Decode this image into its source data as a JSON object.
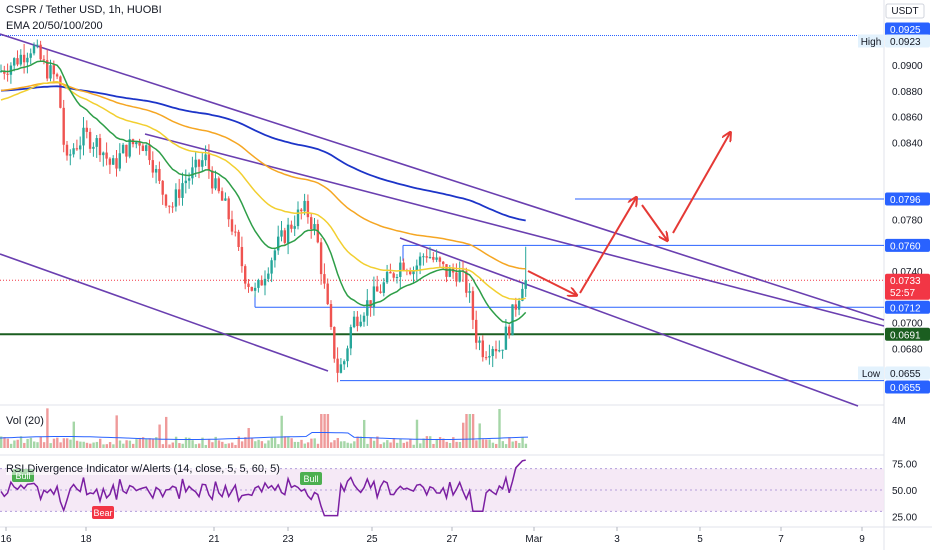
{
  "header": {
    "title": "CSPR / Tether USD, 1h, HUOBI",
    "indicator": "EMA 20/50/100/200"
  },
  "currency_label": "USDT",
  "volume_pane": {
    "label": "Vol (20)",
    "scale_label": "4M"
  },
  "rsi_pane": {
    "label": "RSI Divergence Indicator w/Alerts (14, close, 5, 5, 60, 5)",
    "ticks": [
      "75.00",
      "50.00",
      "25.00"
    ],
    "tags": [
      {
        "text": "Bull",
        "color": "#4caf50"
      },
      {
        "text": "Bear",
        "color": "#f23645"
      },
      {
        "text": "Bull",
        "color": "#4caf50"
      }
    ]
  },
  "chart_data": {
    "type": "candlestick",
    "x_axis_labels": [
      "16",
      "18",
      "21",
      "23",
      "25",
      "27",
      "Mar",
      "3",
      "5",
      "7",
      "9"
    ],
    "y_axis_ticks": [
      "0.0900",
      "0.0880",
      "0.0860",
      "0.0840",
      "0.0780",
      "0.0740",
      "0.0700",
      "0.0680"
    ],
    "price_tags": [
      {
        "value": "0.0925",
        "text_color": "#ffffff",
        "bg": "#2962ff"
      },
      {
        "value": "0.0923",
        "text_color": "#131722",
        "bg": "#e3f2fd",
        "side_label": "High"
      },
      {
        "value": "0.0796",
        "text_color": "#ffffff",
        "bg": "#2962ff"
      },
      {
        "value": "0.0760",
        "text_color": "#ffffff",
        "bg": "#2962ff"
      },
      {
        "value": "0.0733",
        "text_color": "#ffffff",
        "bg": "#f23645",
        "sub": "52:57"
      },
      {
        "value": "0.0712",
        "text_color": "#ffffff",
        "bg": "#2962ff"
      },
      {
        "value": "0.0691",
        "text_color": "#ffffff",
        "bg": "#1b5e20"
      },
      {
        "value": "0.0655",
        "text_color": "#131722",
        "bg": "#e3f2fd",
        "side_label": "Low"
      },
      {
        "value": "0.0655",
        "text_color": "#ffffff",
        "bg": "#2962ff"
      }
    ],
    "horizontal_levels": [
      0.0923,
      0.0796,
      0.076,
      0.0712,
      0.0691,
      0.0655
    ],
    "last_price": 0.0733,
    "ema_colors": {
      "ema20": "#2e9e48",
      "ema50": "#f2cf30",
      "ema100": "#f5a623",
      "ema200": "#1c34c8"
    },
    "channel_color": "#6a3fb0",
    "projection_color": "#e53935",
    "colors": {
      "up": "#26a69a",
      "down": "#ef5350",
      "rsi": "#7b1fa2"
    }
  }
}
